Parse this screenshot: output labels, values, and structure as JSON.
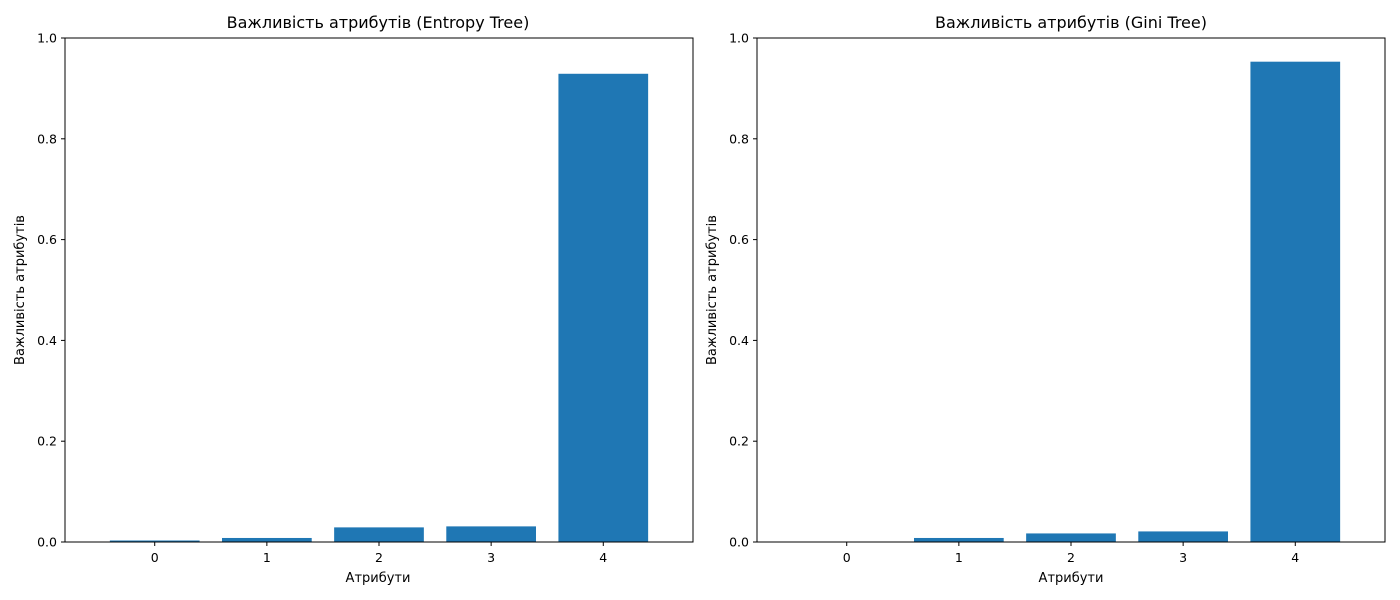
{
  "chart_data": [
    {
      "type": "bar",
      "title": "Важливість атрибутів (Entropy Tree)",
      "xlabel": "Атрибути",
      "ylabel": "Важливість атрибутів",
      "categories": [
        "0",
        "1",
        "2",
        "3",
        "4"
      ],
      "values": [
        0.003,
        0.008,
        0.029,
        0.031,
        0.929
      ],
      "ylim": [
        0,
        1
      ],
      "yticks": [
        "0.0",
        "0.2",
        "0.4",
        "0.6",
        "0.8",
        "1.0"
      ],
      "grid": false,
      "bar_color": "#1f77b4"
    },
    {
      "type": "bar",
      "title": "Важливість атрибутів (Gini Tree)",
      "xlabel": "Атрибути",
      "ylabel": "Важливість атрибутів",
      "categories": [
        "0",
        "1",
        "2",
        "3",
        "4"
      ],
      "values": [
        0.0,
        0.008,
        0.017,
        0.021,
        0.953
      ],
      "ylim": [
        0,
        1
      ],
      "yticks": [
        "0.0",
        "0.2",
        "0.4",
        "0.6",
        "0.8",
        "1.0"
      ],
      "grid": false,
      "bar_color": "#1f77b4"
    }
  ]
}
